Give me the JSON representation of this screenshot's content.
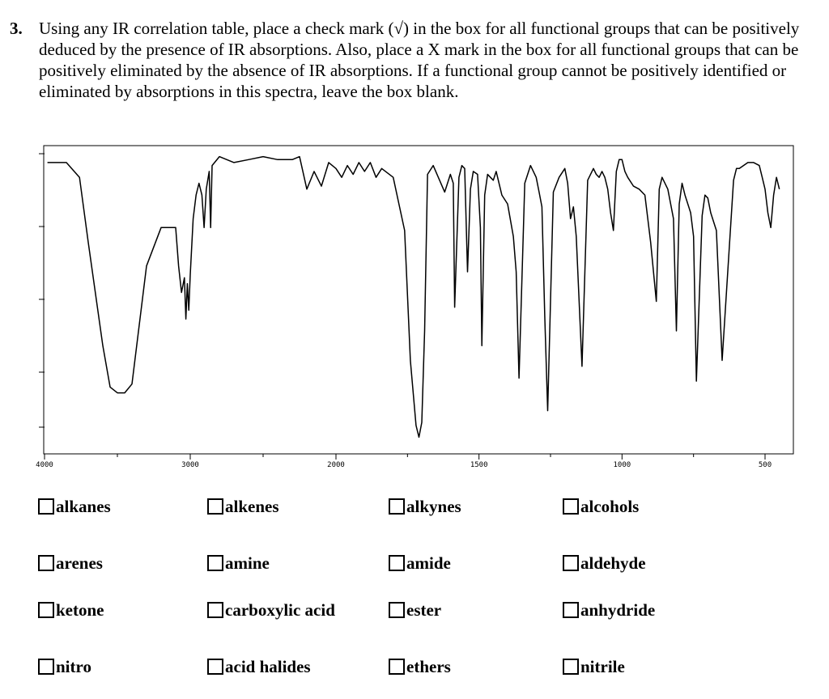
{
  "question": {
    "number": "3.",
    "text": "Using any IR correlation table, place a check mark (√) in the box for all functional groups that can be positively deduced by the presence of IR absorptions.  Also, place a X mark in the box for all functional groups that can be positively eliminated by the absence of IR absorptions.  If a functional group cannot be positively identified or eliminated by absorptions in this spectra, leave the box blank."
  },
  "spectrum": {
    "x_tick_labels": [
      "4000",
      "3000",
      "2000",
      "1500",
      "1000",
      "500"
    ],
    "line_color": "#000000"
  },
  "chart_data": {
    "type": "line",
    "title": "",
    "xlabel": "",
    "ylabel": "",
    "x_tick_labels": [
      "4000",
      "3000",
      "2000",
      "1500",
      "1000",
      "500"
    ],
    "xlim": [
      4000,
      450
    ],
    "y_scale": "0 (strong absorption) to 1 (baseline)",
    "series": [
      {
        "x": [
          3980,
          3850,
          3760,
          3700,
          3600,
          3550,
          3500,
          3450,
          3400,
          3380,
          3300,
          3200,
          3100,
          3080,
          3060,
          3040,
          3030,
          3020,
          3010,
          3000,
          2980,
          2960,
          2940,
          2920,
          2905,
          2890,
          2870,
          2860,
          2850,
          2800,
          2700,
          2600,
          2500,
          2400,
          2300,
          2250,
          2200,
          2150,
          2100,
          2050,
          2000,
          1980,
          1960,
          1940,
          1920,
          1900,
          1880,
          1860,
          1840,
          1800,
          1760,
          1740,
          1720,
          1710,
          1700,
          1690,
          1680,
          1660,
          1620,
          1600,
          1590,
          1585,
          1570,
          1560,
          1550,
          1540,
          1530,
          1520,
          1505,
          1495,
          1490,
          1480,
          1470,
          1460,
          1450,
          1440,
          1420,
          1400,
          1380,
          1370,
          1360,
          1340,
          1320,
          1300,
          1290,
          1280,
          1270,
          1260,
          1240,
          1220,
          1200,
          1190,
          1180,
          1170,
          1160,
          1140,
          1120,
          1100,
          1090,
          1080,
          1070,
          1060,
          1050,
          1040,
          1030,
          1020,
          1010,
          1000,
          990,
          980,
          960,
          940,
          920,
          900,
          880,
          870,
          860,
          840,
          820,
          810,
          800,
          790,
          780,
          760,
          750,
          740,
          720,
          710,
          700,
          690,
          670,
          650,
          610,
          600,
          590,
          560,
          540,
          520,
          510,
          500,
          490,
          480,
          470,
          460,
          450
        ],
        "values": [
          0.97,
          0.97,
          0.92,
          0.7,
          0.35,
          0.21,
          0.19,
          0.19,
          0.22,
          0.3,
          0.62,
          0.75,
          0.75,
          0.62,
          0.53,
          0.58,
          0.44,
          0.56,
          0.47,
          0.59,
          0.78,
          0.86,
          0.9,
          0.86,
          0.75,
          0.88,
          0.94,
          0.75,
          0.96,
          0.99,
          0.97,
          0.98,
          0.99,
          0.98,
          0.98,
          0.99,
          0.88,
          0.94,
          0.89,
          0.97,
          0.95,
          0.92,
          0.96,
          0.93,
          0.97,
          0.94,
          0.97,
          0.92,
          0.95,
          0.92,
          0.74,
          0.3,
          0.08,
          0.04,
          0.09,
          0.4,
          0.93,
          0.96,
          0.87,
          0.93,
          0.9,
          0.48,
          0.92,
          0.96,
          0.95,
          0.6,
          0.88,
          0.94,
          0.93,
          0.75,
          0.35,
          0.86,
          0.93,
          0.92,
          0.91,
          0.94,
          0.86,
          0.83,
          0.72,
          0.6,
          0.24,
          0.9,
          0.96,
          0.92,
          0.87,
          0.82,
          0.45,
          0.13,
          0.87,
          0.92,
          0.95,
          0.9,
          0.78,
          0.82,
          0.72,
          0.28,
          0.91,
          0.95,
          0.93,
          0.92,
          0.94,
          0.92,
          0.88,
          0.8,
          0.74,
          0.94,
          0.98,
          0.98,
          0.94,
          0.92,
          0.89,
          0.88,
          0.86,
          0.7,
          0.5,
          0.88,
          0.92,
          0.88,
          0.78,
          0.4,
          0.83,
          0.9,
          0.86,
          0.8,
          0.72,
          0.23,
          0.79,
          0.86,
          0.85,
          0.8,
          0.74,
          0.3,
          0.91,
          0.95,
          0.95,
          0.97,
          0.97,
          0.96,
          0.92,
          0.88,
          0.8,
          0.75,
          0.86,
          0.92,
          0.88
        ]
      }
    ]
  },
  "options": [
    {
      "label": "alkanes"
    },
    {
      "label": "alkenes"
    },
    {
      "label": "alkynes"
    },
    {
      "label": "alcohols"
    },
    {
      "label": "arenes"
    },
    {
      "label": "amine"
    },
    {
      "label": "amide"
    },
    {
      "label": "aldehyde"
    },
    {
      "label": "ketone"
    },
    {
      "label": "carboxylic acid"
    },
    {
      "label": "ester"
    },
    {
      "label": "anhydride"
    },
    {
      "label": "nitro"
    },
    {
      "label": "acid halides"
    },
    {
      "label": "ethers"
    },
    {
      "label": "nitrile"
    }
  ]
}
